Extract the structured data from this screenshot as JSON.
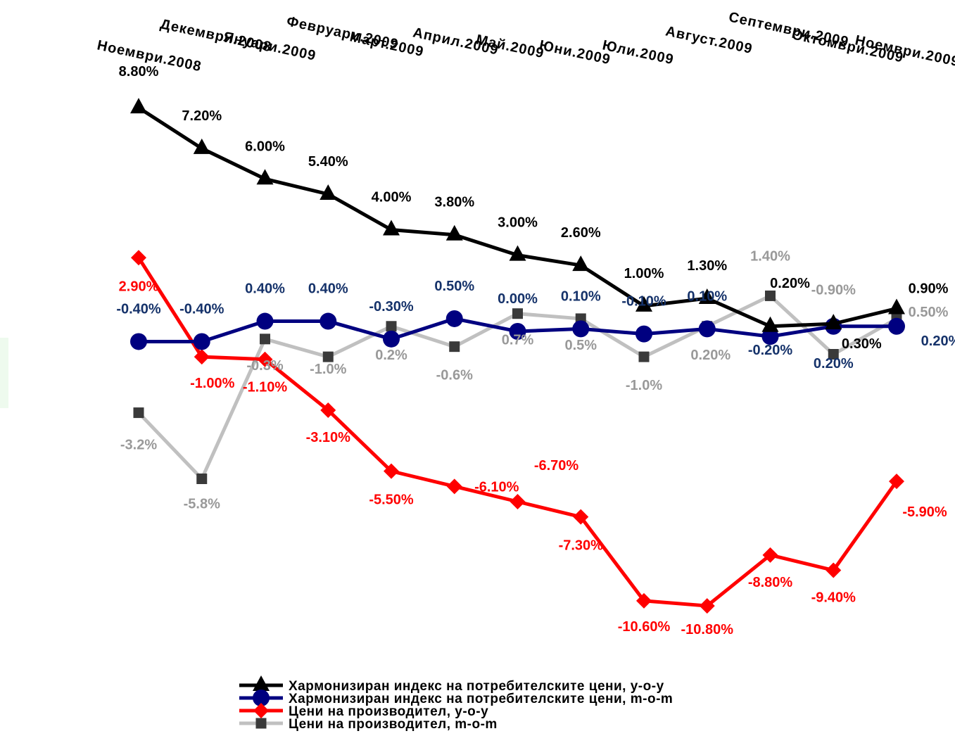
{
  "chart_data": {
    "type": "line",
    "categories": [
      "Ноември.2008",
      "Декември.2008",
      "Януари.2009",
      "Февруари.2009",
      "Март.2009",
      "Април.2009",
      "Май.2009",
      "Юни.2009",
      "Юли.2009",
      "Август.2009",
      "Септември.2009",
      "Октомври.2009",
      "Ноември.2009"
    ],
    "series": [
      {
        "name": "Хармонизиран индекс на потребителските цени, y-o-y",
        "color": "#000000",
        "marker": "triangle",
        "values": [
          8.8,
          7.2,
          6.0,
          5.4,
          4.0,
          3.8,
          3.0,
          2.6,
          1.0,
          1.3,
          0.2,
          0.3,
          0.9
        ],
        "labels": [
          "8.80%",
          "7.20%",
          "6.00%",
          "5.40%",
          "4.00%",
          "3.80%",
          "3.00%",
          "2.60%",
          "1.00%",
          "1.30%",
          "0.20%",
          "0.30%",
          "0.90%"
        ]
      },
      {
        "name": "Хармонизиран индекс на потребителските цени, m-o-m",
        "color": "#000080",
        "marker": "circle",
        "values": [
          -0.4,
          -0.4,
          0.4,
          0.4,
          -0.3,
          0.5,
          0.0,
          0.1,
          -0.1,
          0.1,
          -0.2,
          0.2,
          0.2
        ],
        "labels": [
          "-0.40%",
          "-0.40%",
          "0.40%",
          "0.40%",
          "-0.30%",
          "0.50%",
          "0.00%",
          "0.10%",
          "-0.10%",
          "0.10%",
          "-0.20%",
          "0.20%",
          "0.20%"
        ]
      },
      {
        "name": "Цени на производител, y-o-y",
        "color": "#ff0000",
        "marker": "diamond",
        "values": [
          2.9,
          -1.0,
          -1.1,
          -3.1,
          -5.5,
          -6.1,
          -6.7,
          -7.3,
          -10.6,
          -10.8,
          -8.8,
          -9.4,
          -5.9
        ],
        "labels": [
          "2.90%",
          "-1.00%",
          "-1.10%",
          "-3.10%",
          "-5.50%",
          "-6.10%",
          "-6.70%",
          "-7.30%",
          "-10.60%",
          "-10.80%",
          "-8.80%",
          "-9.40%",
          "-5.90%"
        ]
      },
      {
        "name": "Цени на производител, m-o-m",
        "color": "#c0c0c0",
        "marker": "square",
        "values": [
          -3.2,
          -5.8,
          -0.3,
          -1.0,
          0.2,
          -0.6,
          0.7,
          0.5,
          -1.0,
          0.2,
          1.4,
          -0.9,
          0.5
        ],
        "labels": [
          "-3.2%",
          "-5.8%",
          "-0.3%",
          "-1.0%",
          "0.2%",
          "-0.6%",
          "0.7%",
          "0.5%",
          "-1.0%",
          "0.20%",
          "1.40%",
          "-0.90%",
          "0.50%"
        ]
      }
    ],
    "legend_position": "bottom-center",
    "grid": false
  },
  "legend": {
    "items": [
      "Хармонизиран индекс на потребителските цени, y-o-y",
      "Хармонизиран индекс на потребителските цени, m-o-m",
      "Цени на производител, y-o-y",
      "Цени на производител, m-o-m"
    ]
  }
}
